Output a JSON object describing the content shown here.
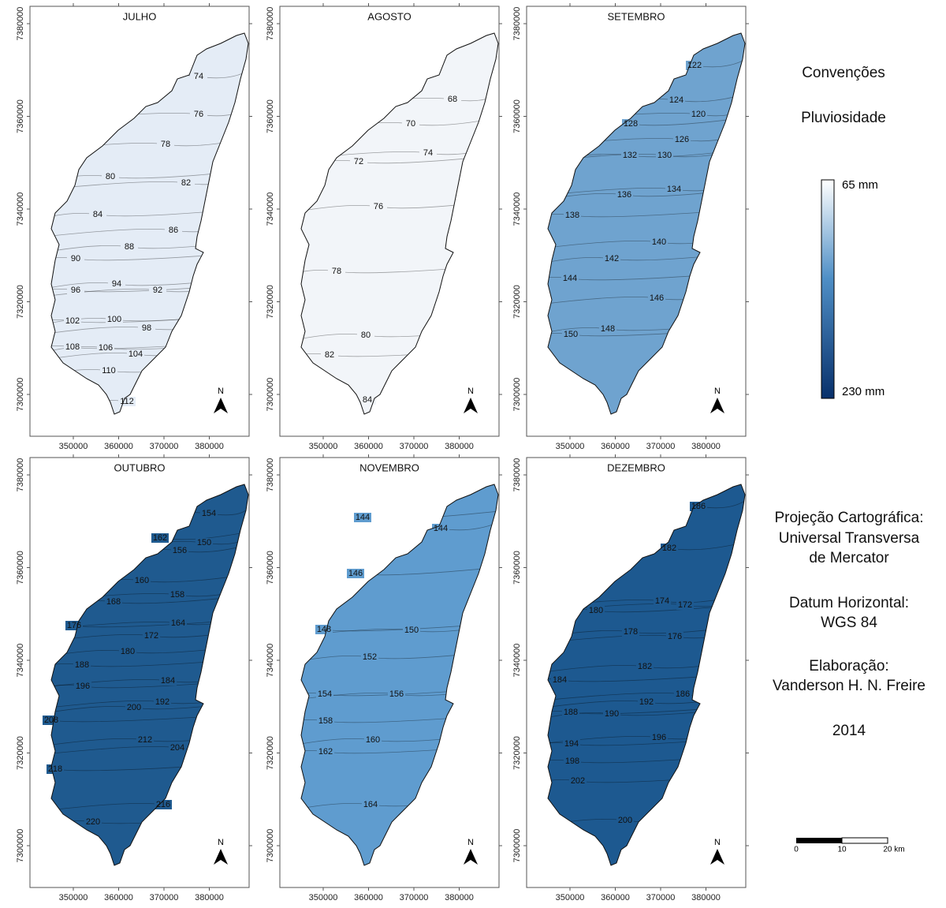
{
  "panels": [
    {
      "title": "JULHO",
      "fill": "#e4ecf6",
      "contour_labels": [
        74,
        76,
        78,
        80,
        82,
        84,
        86,
        88,
        90,
        94,
        92,
        96,
        102,
        100,
        98,
        108,
        106,
        104,
        110,
        112
      ]
    },
    {
      "title": "AGOSTO",
      "fill": "#f2f5f9",
      "contour_labels": [
        68,
        70,
        72,
        74,
        76,
        78,
        80,
        82,
        84
      ]
    },
    {
      "title": "SETEMBRO",
      "fill": "#6fa3cf",
      "contour_labels": [
        122,
        124,
        120,
        128,
        126,
        132,
        130,
        134,
        136,
        138,
        140,
        142,
        144,
        146,
        150,
        148
      ]
    },
    {
      "title": "OUTUBRO",
      "fill": "#1f5a8f",
      "contour_labels": [
        154,
        162,
        150,
        156,
        160,
        158,
        168,
        164,
        176,
        172,
        180,
        188,
        184,
        196,
        192,
        200,
        208,
        212,
        204,
        218,
        216,
        220
      ]
    },
    {
      "title": "NOVEMBRO",
      "fill": "#5f9ccf",
      "contour_labels": [
        144,
        144,
        146,
        148,
        150,
        152,
        154,
        156,
        158,
        160,
        162,
        164
      ]
    },
    {
      "title": "DEZEMBRO",
      "fill": "#1d5990",
      "contour_labels": [
        186,
        182,
        174,
        172,
        180,
        178,
        176,
        182,
        184,
        186,
        192,
        190,
        188,
        196,
        194,
        198,
        202,
        200
      ]
    }
  ],
  "xticks": [
    350000,
    360000,
    370000,
    380000
  ],
  "yticks": [
    7380000,
    7360000,
    7340000,
    7320000,
    7300000
  ],
  "north": "N",
  "legend": {
    "title": "Convenções",
    "subtitle": "Pluviosidade",
    "top_label": "65 mm",
    "bottom_label": "230 mm",
    "top_color": "#ffffff",
    "bottom_color": "#08306b"
  },
  "notes": [
    "Projeção Cartográfica:",
    "Universal Transversa",
    "de Mercator",
    "Datum Horizontal:",
    "WGS 84",
    "Elaboração:",
    "Vanderson H. N. Freire",
    "2014"
  ],
  "scale_bar": {
    "labels": [
      "0",
      "10",
      "20 km"
    ]
  }
}
